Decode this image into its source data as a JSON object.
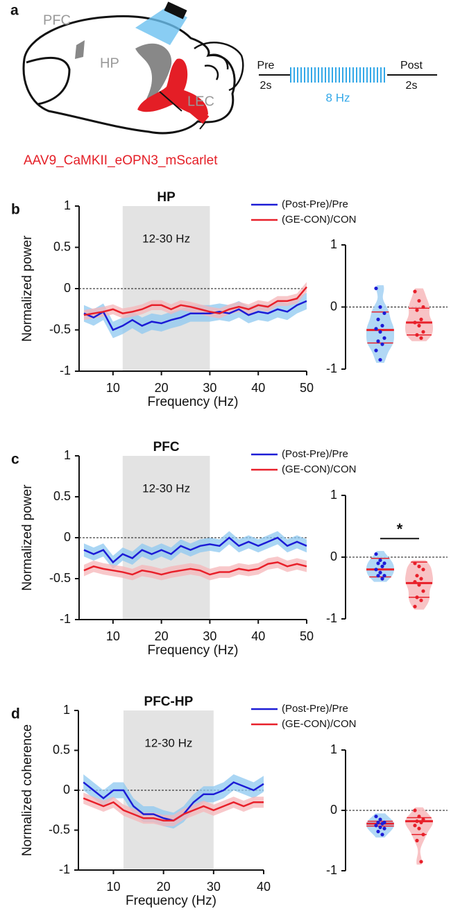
{
  "panel_a": {
    "label": "a",
    "regions": [
      "PFC",
      "HP",
      "LEC"
    ],
    "virus": "AAV9_CaMKII_eOPN3_mScarlet",
    "protocol": {
      "pre": "Pre",
      "pre_duration": "2s",
      "stim": "8 Hz",
      "post": "Post",
      "post_duration": "2s"
    }
  },
  "chart_data": [
    {
      "type": "line",
      "panel_label": "b",
      "title": "HP",
      "xlabel": "Frequency (Hz)",
      "ylabel": "Normalized power",
      "xlim": [
        3,
        50
      ],
      "xticks": [
        10,
        20,
        30,
        40,
        50
      ],
      "ylim": [
        -1,
        1
      ],
      "yticks": [
        -1,
        -0.5,
        0,
        0.5,
        1
      ],
      "shade": [
        12,
        30
      ],
      "shade_label": "12-30 Hz",
      "reference_line": 0,
      "x": [
        4,
        6,
        8,
        10,
        12,
        14,
        16,
        18,
        20,
        22,
        24,
        26,
        28,
        30,
        32,
        34,
        36,
        38,
        40,
        42,
        44,
        46,
        48,
        50
      ],
      "series": [
        {
          "name": "(Post-Pre)/Pre",
          "color": "#1c1cd6",
          "band_color": "#8ec8f0",
          "values": [
            -0.3,
            -0.35,
            -0.28,
            -0.5,
            -0.45,
            -0.38,
            -0.45,
            -0.4,
            -0.42,
            -0.38,
            -0.35,
            -0.3,
            -0.3,
            -0.3,
            -0.28,
            -0.3,
            -0.25,
            -0.32,
            -0.28,
            -0.3,
            -0.25,
            -0.28,
            -0.2,
            -0.15
          ],
          "error": [
            0.1,
            0.1,
            0.1,
            0.1,
            0.1,
            0.1,
            0.1,
            0.1,
            0.1,
            0.1,
            0.1,
            0.1,
            0.1,
            0.1,
            0.1,
            0.1,
            0.1,
            0.1,
            0.1,
            0.1,
            0.1,
            0.1,
            0.1,
            0.1
          ]
        },
        {
          "name": "(GE-CON)/CON",
          "color": "#e8202a",
          "band_color": "#f6b6b8",
          "values": [
            -0.32,
            -0.3,
            -0.28,
            -0.25,
            -0.3,
            -0.28,
            -0.25,
            -0.2,
            -0.2,
            -0.25,
            -0.2,
            -0.22,
            -0.25,
            -0.28,
            -0.3,
            -0.25,
            -0.22,
            -0.25,
            -0.2,
            -0.22,
            -0.15,
            -0.15,
            -0.12,
            0.02
          ],
          "error": [
            0.06,
            0.06,
            0.06,
            0.06,
            0.06,
            0.06,
            0.06,
            0.06,
            0.06,
            0.06,
            0.06,
            0.06,
            0.06,
            0.06,
            0.06,
            0.06,
            0.06,
            0.06,
            0.06,
            0.06,
            0.06,
            0.06,
            0.06,
            0.06
          ]
        }
      ]
    },
    {
      "type": "violin",
      "ylim": [
        -1,
        1
      ],
      "yticks": [
        -1,
        0,
        1
      ],
      "reference_line": 0,
      "groups": [
        {
          "color": "#1c1cd6",
          "fill": "#a9d4f4",
          "points": [
            0.3,
            0.0,
            -0.1,
            -0.2,
            -0.3,
            -0.35,
            -0.4,
            -0.5,
            -0.55,
            -0.6,
            -0.7,
            -0.85
          ],
          "median": -0.37,
          "quartiles": [
            -0.58,
            -0.08
          ]
        },
        {
          "color": "#e8202a",
          "fill": "#f7bdbf",
          "points": [
            0.25,
            0.1,
            0.0,
            -0.05,
            -0.2,
            -0.25,
            -0.3,
            -0.4,
            -0.45,
            -0.5
          ],
          "median": -0.25,
          "quartiles": [
            -0.45,
            -0.02
          ]
        }
      ]
    },
    {
      "type": "line",
      "panel_label": "c",
      "title": "PFC",
      "xlabel": "Frequency (Hz)",
      "ylabel": "Normalized power",
      "xlim": [
        3,
        50
      ],
      "xticks": [
        10,
        20,
        30,
        40,
        50
      ],
      "ylim": [
        -1,
        1
      ],
      "yticks": [
        -1,
        -0.5,
        0,
        0.5,
        1
      ],
      "shade": [
        12,
        30
      ],
      "shade_label": "12-30 Hz",
      "reference_line": 0,
      "x": [
        4,
        6,
        8,
        10,
        12,
        14,
        16,
        18,
        20,
        22,
        24,
        26,
        28,
        30,
        32,
        34,
        36,
        38,
        40,
        42,
        44,
        46,
        48,
        50
      ],
      "series": [
        {
          "name": "(Post-Pre)/Pre",
          "color": "#1c1cd6",
          "band_color": "#8ec8f0",
          "values": [
            -0.15,
            -0.2,
            -0.15,
            -0.3,
            -0.2,
            -0.25,
            -0.15,
            -0.2,
            -0.15,
            -0.2,
            -0.1,
            -0.15,
            -0.1,
            -0.08,
            -0.1,
            0.0,
            -0.1,
            -0.05,
            -0.1,
            -0.05,
            0.0,
            -0.1,
            -0.05,
            -0.1
          ],
          "error": [
            0.08,
            0.08,
            0.08,
            0.08,
            0.08,
            0.08,
            0.08,
            0.08,
            0.08,
            0.08,
            0.08,
            0.08,
            0.08,
            0.08,
            0.08,
            0.08,
            0.08,
            0.08,
            0.08,
            0.08,
            0.08,
            0.08,
            0.08,
            0.08
          ]
        },
        {
          "name": "(GE-CON)/CON",
          "color": "#e8202a",
          "band_color": "#f6b6b8",
          "values": [
            -0.4,
            -0.35,
            -0.38,
            -0.4,
            -0.42,
            -0.45,
            -0.4,
            -0.42,
            -0.45,
            -0.42,
            -0.4,
            -0.38,
            -0.4,
            -0.45,
            -0.42,
            -0.42,
            -0.38,
            -0.4,
            -0.38,
            -0.32,
            -0.3,
            -0.35,
            -0.32,
            -0.35
          ],
          "error": [
            0.07,
            0.07,
            0.07,
            0.07,
            0.07,
            0.07,
            0.07,
            0.07,
            0.07,
            0.07,
            0.07,
            0.07,
            0.07,
            0.07,
            0.07,
            0.07,
            0.07,
            0.07,
            0.07,
            0.07,
            0.07,
            0.07,
            0.07,
            0.07
          ]
        }
      ]
    },
    {
      "type": "violin",
      "ylim": [
        -1,
        1
      ],
      "yticks": [
        -1,
        0,
        1
      ],
      "reference_line": 0,
      "significance": "*",
      "groups": [
        {
          "color": "#1c1cd6",
          "fill": "#a9d4f4",
          "points": [
            0.05,
            -0.05,
            -0.1,
            -0.1,
            -0.15,
            -0.2,
            -0.25,
            -0.3,
            -0.3,
            -0.35
          ],
          "median": -0.2,
          "quartiles": [
            -0.32,
            -0.02
          ]
        },
        {
          "color": "#e8202a",
          "fill": "#f7bdbf",
          "points": [
            -0.1,
            -0.15,
            -0.2,
            -0.3,
            -0.35,
            -0.4,
            -0.45,
            -0.55,
            -0.65,
            -0.7,
            -0.8
          ],
          "median": -0.42,
          "quartiles": [
            -0.65,
            -0.08
          ]
        }
      ]
    },
    {
      "type": "line",
      "panel_label": "d",
      "title": "PFC-HP",
      "xlabel": "Frequency (Hz)",
      "ylabel": "Normalized coherence",
      "xlim": [
        3,
        40
      ],
      "xticks": [
        10,
        20,
        30,
        40
      ],
      "ylim": [
        -1,
        1
      ],
      "yticks": [
        -1,
        -0.5,
        0,
        0.5,
        1
      ],
      "shade": [
        12,
        30
      ],
      "shade_label": "12-30 Hz",
      "reference_line": 0,
      "x": [
        4,
        6,
        8,
        10,
        12,
        14,
        16,
        18,
        20,
        22,
        24,
        26,
        28,
        30,
        32,
        34,
        36,
        38,
        40
      ],
      "series": [
        {
          "name": "(Post-Pre)/Pre",
          "color": "#1c1cd6",
          "band_color": "#8ec8f0",
          "values": [
            0.1,
            0.0,
            -0.1,
            0.0,
            0.0,
            -0.2,
            -0.3,
            -0.3,
            -0.35,
            -0.38,
            -0.3,
            -0.15,
            -0.05,
            -0.05,
            0.0,
            0.1,
            0.05,
            0.0,
            0.08
          ],
          "error": [
            0.1,
            0.1,
            0.1,
            0.1,
            0.1,
            0.1,
            0.1,
            0.1,
            0.1,
            0.1,
            0.1,
            0.1,
            0.1,
            0.1,
            0.1,
            0.1,
            0.1,
            0.1,
            0.1
          ]
        },
        {
          "name": "(GE-CON)/CON",
          "color": "#e8202a",
          "band_color": "#f6b6b8",
          "values": [
            -0.1,
            -0.15,
            -0.2,
            -0.15,
            -0.25,
            -0.3,
            -0.35,
            -0.35,
            -0.38,
            -0.38,
            -0.3,
            -0.25,
            -0.2,
            -0.25,
            -0.2,
            -0.15,
            -0.2,
            -0.15,
            -0.15
          ],
          "error": [
            0.07,
            0.07,
            0.07,
            0.07,
            0.07,
            0.07,
            0.07,
            0.07,
            0.07,
            0.07,
            0.07,
            0.07,
            0.07,
            0.07,
            0.07,
            0.07,
            0.07,
            0.07,
            0.07
          ]
        }
      ]
    },
    {
      "type": "violin",
      "ylim": [
        -1,
        1
      ],
      "yticks": [
        -1,
        0,
        1
      ],
      "reference_line": 0,
      "groups": [
        {
          "color": "#1c1cd6",
          "fill": "#a9d4f4",
          "points": [
            -0.1,
            -0.15,
            -0.2,
            -0.2,
            -0.22,
            -0.25,
            -0.28,
            -0.3,
            -0.35,
            -0.4
          ],
          "median": -0.22,
          "quartiles": [
            -0.26,
            -0.18
          ]
        },
        {
          "color": "#e8202a",
          "fill": "#f7bdbf",
          "points": [
            0.0,
            -0.1,
            -0.15,
            -0.18,
            -0.2,
            -0.25,
            -0.3,
            -0.4,
            -0.5,
            -0.85
          ],
          "median": -0.18,
          "quartiles": [
            -0.4,
            -0.12
          ]
        }
      ]
    }
  ]
}
